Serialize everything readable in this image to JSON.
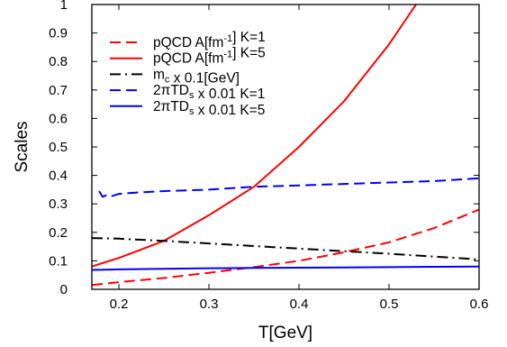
{
  "chart_data": {
    "type": "line",
    "xlabel": "T[GeV]",
    "ylabel": "Scales",
    "xlim": [
      0.17,
      0.6
    ],
    "ylim": [
      0,
      1
    ],
    "x_ticks": [
      "0.2",
      "0.3",
      "0.4",
      "0.5",
      "0.6"
    ],
    "y_ticks": [
      "0",
      "0.1",
      "0.2",
      "0.3",
      "0.4",
      "0.5",
      "0.6",
      "0.7",
      "0.8",
      "0.9",
      "1"
    ],
    "grid": false,
    "legend_position": "top-left",
    "series": [
      {
        "name": "pQCD A[fm-1] K=1",
        "legend_parts": [
          [
            "pQCD A[fm",
            ""
          ],
          [
            "-1",
            "sup"
          ],
          [
            "] K=1",
            ""
          ]
        ],
        "color": "#ff0000",
        "style": "dashed",
        "x": [
          0.17,
          0.2,
          0.25,
          0.3,
          0.35,
          0.4,
          0.45,
          0.5,
          0.55,
          0.6
        ],
        "y": [
          0.015,
          0.025,
          0.04,
          0.058,
          0.078,
          0.1,
          0.13,
          0.165,
          0.215,
          0.28
        ]
      },
      {
        "name": "pQCD A[fm-1] K=5",
        "legend_parts": [
          [
            "pQCD A[fm",
            ""
          ],
          [
            "-1",
            "sup"
          ],
          [
            "] K=5",
            ""
          ]
        ],
        "color": "#ff0000",
        "style": "solid",
        "x": [
          0.17,
          0.2,
          0.25,
          0.3,
          0.35,
          0.4,
          0.45,
          0.5,
          0.53
        ],
        "y": [
          0.08,
          0.11,
          0.17,
          0.26,
          0.36,
          0.5,
          0.66,
          0.86,
          1.0
        ]
      },
      {
        "name": "mc x 0.1[GeV]",
        "legend_parts": [
          [
            "m",
            ""
          ],
          [
            "c",
            "sub"
          ],
          [
            " x 0.1[GeV]",
            ""
          ]
        ],
        "color": "#000000",
        "style": "dashdot",
        "x": [
          0.17,
          0.2,
          0.25,
          0.3,
          0.35,
          0.4,
          0.45,
          0.5,
          0.55,
          0.6
        ],
        "y": [
          0.18,
          0.178,
          0.17,
          0.161,
          0.152,
          0.143,
          0.134,
          0.125,
          0.115,
          0.105
        ]
      },
      {
        "name": "2πTDs x 0.01 K=1",
        "legend_parts": [
          [
            "2πTD",
            ""
          ],
          [
            "s",
            "sub"
          ],
          [
            " x 0.01 K=1",
            ""
          ]
        ],
        "color": "#0000ff",
        "style": "dashed",
        "x": [
          0.178,
          0.182,
          0.186,
          0.19,
          0.2,
          0.22,
          0.25,
          0.3,
          0.35,
          0.4,
          0.45,
          0.5,
          0.55,
          0.6
        ],
        "y": [
          0.345,
          0.325,
          0.33,
          0.325,
          0.335,
          0.34,
          0.345,
          0.35,
          0.36,
          0.365,
          0.37,
          0.375,
          0.38,
          0.39
        ]
      },
      {
        "name": "2πTDs x 0.01 K=5",
        "legend_parts": [
          [
            "2πTD",
            ""
          ],
          [
            "s",
            "sub"
          ],
          [
            " x 0.01 K=5",
            ""
          ]
        ],
        "color": "#0000ff",
        "style": "solid",
        "x": [
          0.17,
          0.2,
          0.25,
          0.3,
          0.35,
          0.4,
          0.45,
          0.5,
          0.55,
          0.6
        ],
        "y": [
          0.068,
          0.07,
          0.072,
          0.074,
          0.075,
          0.076,
          0.077,
          0.078,
          0.079,
          0.08
        ]
      }
    ]
  }
}
